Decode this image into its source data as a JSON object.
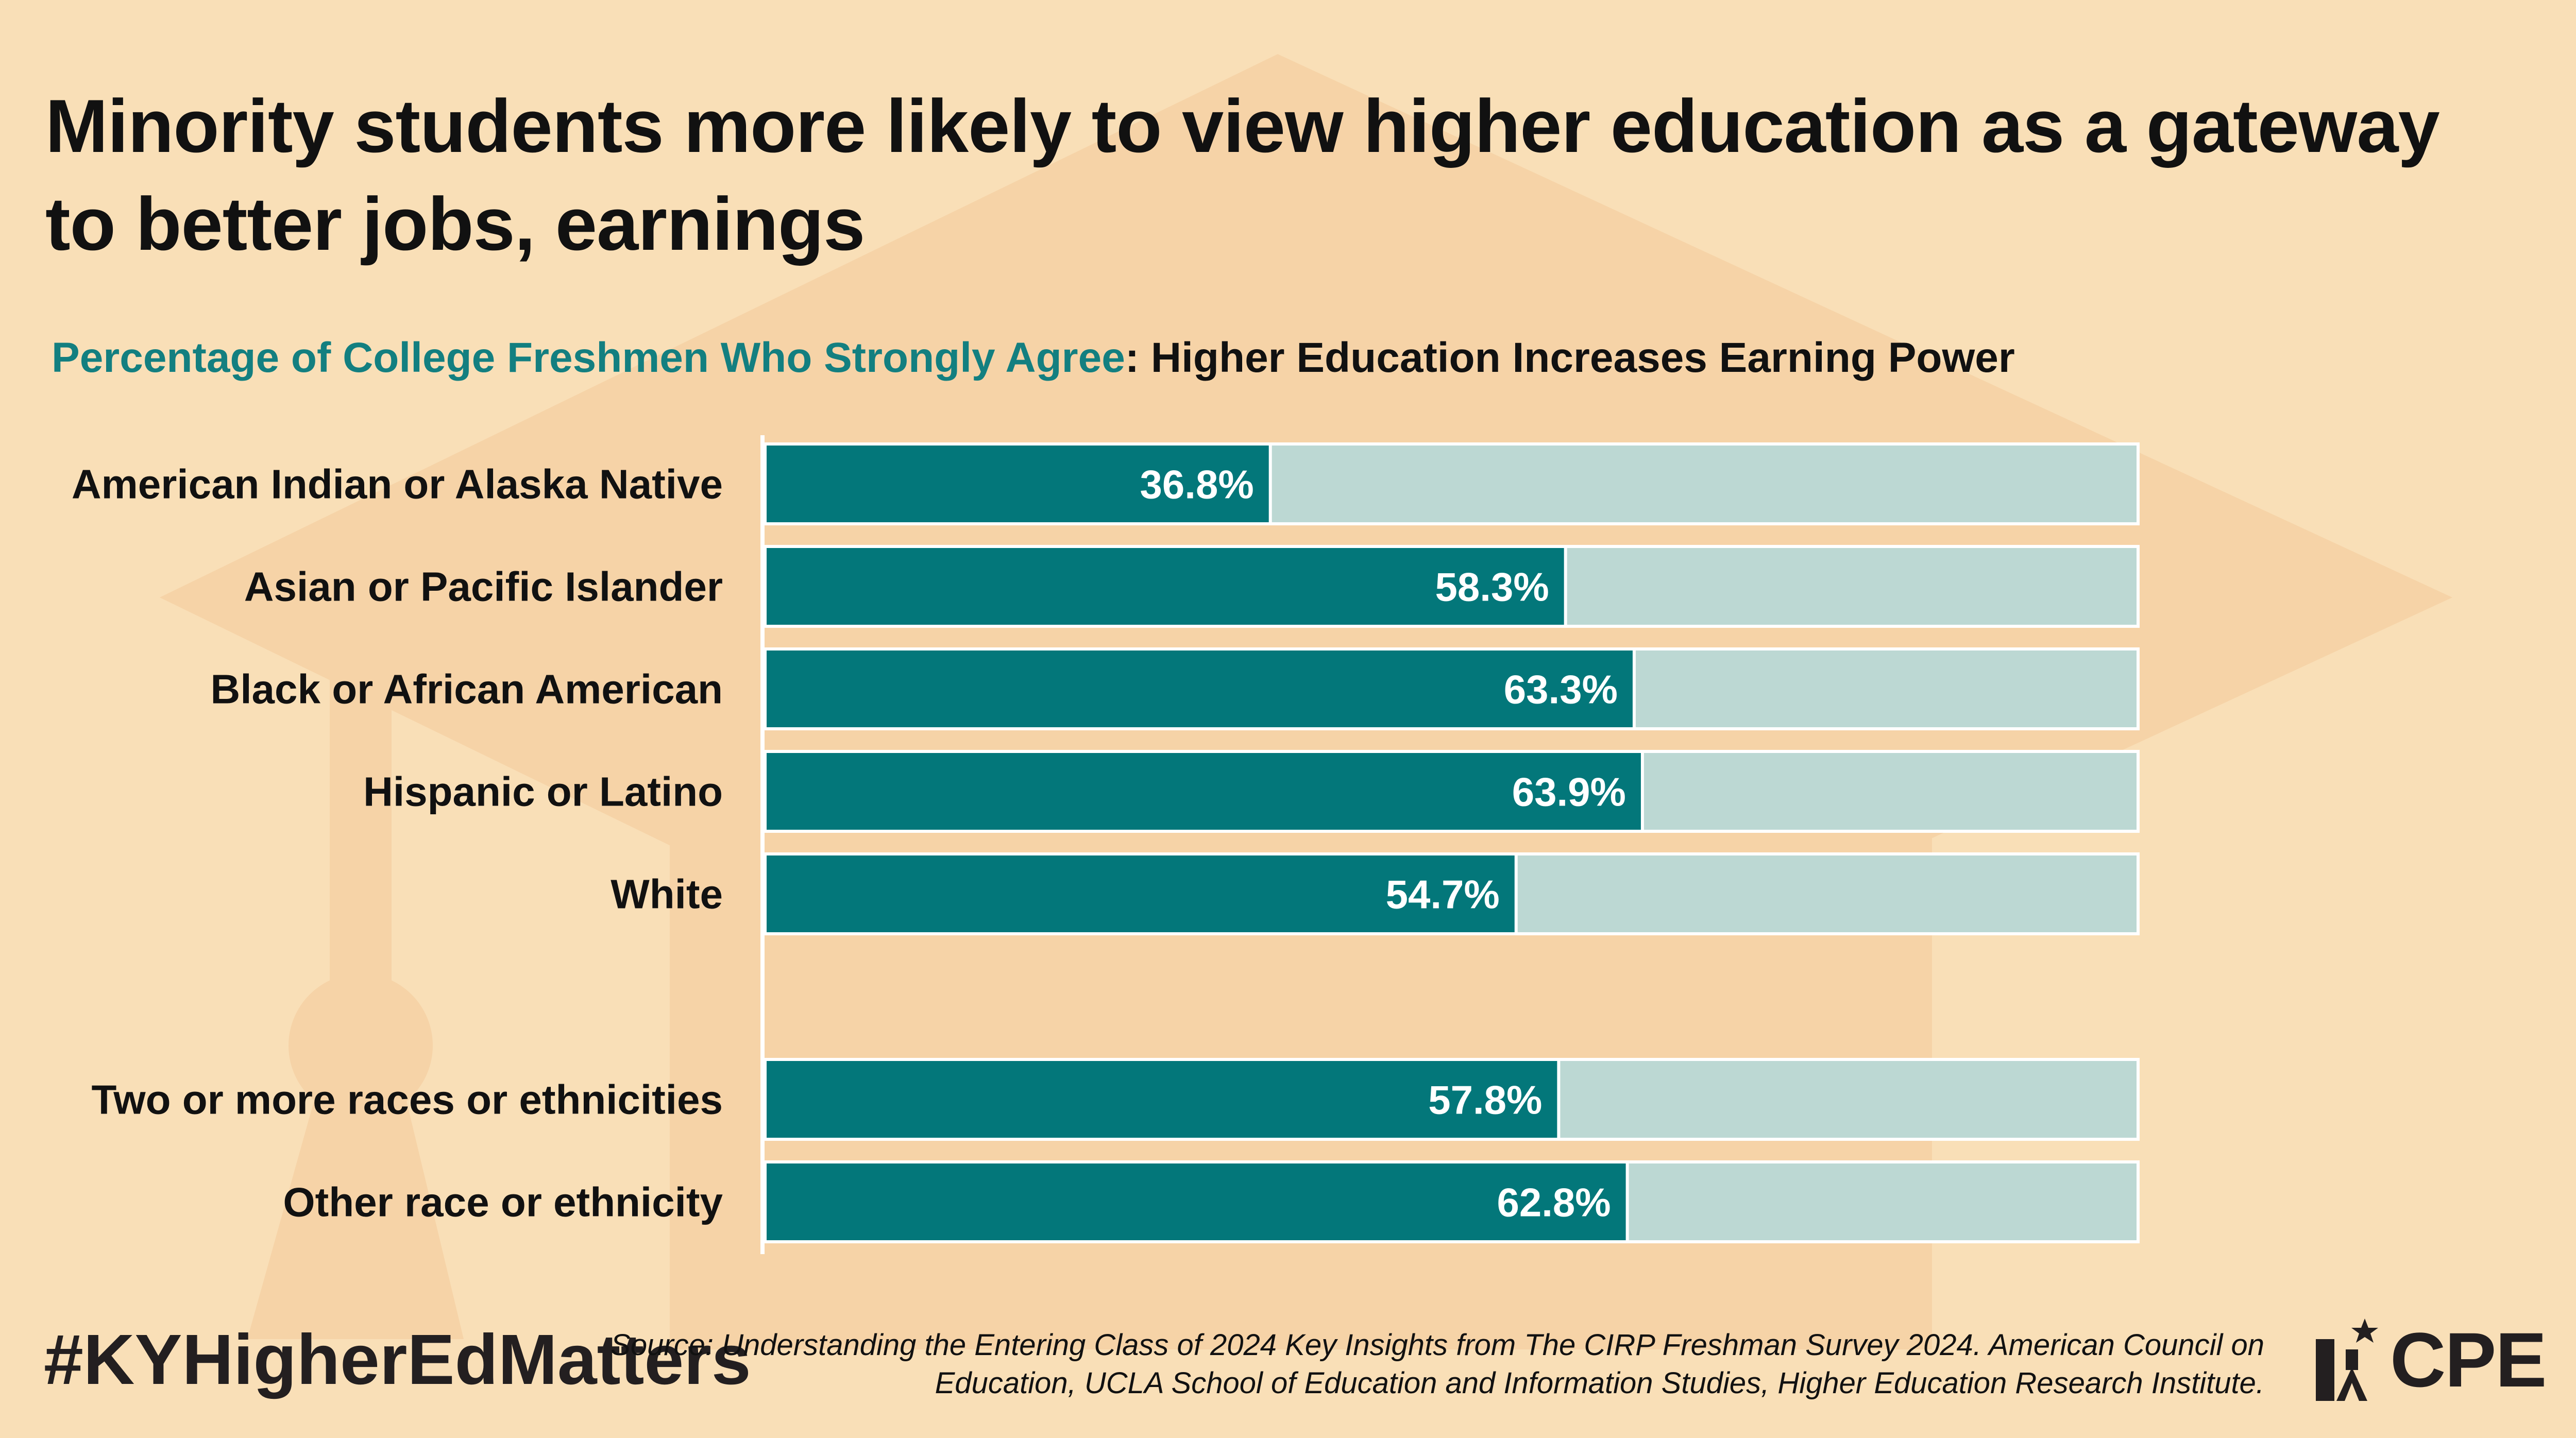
{
  "title": "Minority students more likely to view higher education as a gateway to better jobs, earnings",
  "subtitle": {
    "accent": "Percentage of College Freshmen Who Strongly Agree",
    "rest": ": Higher Education Increases Earning Power"
  },
  "hashtag": "#KYHigherEdMatters",
  "source": "Source: Understanding the Entering Class of 2024 Key Insights from The CIRP Freshman Survey 2024. American Council on Education, UCLA School of Education and Information Studies, Higher Education Research Institute.",
  "logo": {
    "text": "CPE",
    "icon": "star-figure-icon"
  },
  "colors": {
    "background": "#f9dfb7",
    "bar": "#03777a",
    "track": "#bcd8d3",
    "accent": "#137f80"
  },
  "chart_data": {
    "type": "bar",
    "orientation": "horizontal",
    "categories": [
      "American Indian or Alaska Native",
      "Asian or Pacific Islander",
      "Black or African American",
      "Hispanic or Latino",
      "White",
      "Two or more races or ethnicities",
      "Other race or ethnicity"
    ],
    "values": [
      36.8,
      58.3,
      63.3,
      63.9,
      54.7,
      57.8,
      62.8
    ],
    "value_labels": [
      "36.8%",
      "58.3%",
      "63.3%",
      "63.9%",
      "54.7%",
      "57.8%",
      "62.8%"
    ],
    "xlim": [
      0,
      100
    ],
    "grid": false,
    "legend": "none"
  }
}
